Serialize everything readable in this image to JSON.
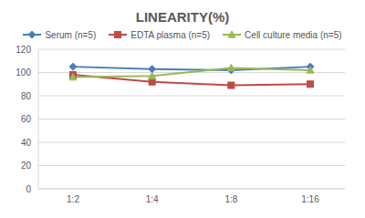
{
  "chart_data": {
    "type": "line",
    "title": "LINEARITY(%)",
    "categories": [
      "1:2",
      "1:4",
      "1:8",
      "1:16"
    ],
    "series": [
      {
        "name": "Serum (n=5)",
        "color": "#4a7ebb",
        "marker": "diamond",
        "values": [
          105,
          103,
          102,
          105
        ]
      },
      {
        "name": "EDTA plasma (n=5)",
        "color": "#be4b48",
        "marker": "square",
        "values": [
          98,
          92,
          89,
          90
        ]
      },
      {
        "name": "Cell culture media (n=5)",
        "color": "#98b954",
        "marker": "triangle",
        "values": [
          96,
          97,
          104,
          102
        ]
      }
    ],
    "ylim": [
      0,
      120
    ],
    "yticks": [
      0,
      20,
      40,
      60,
      80,
      100,
      120
    ],
    "grid": true,
    "legend": "top"
  }
}
